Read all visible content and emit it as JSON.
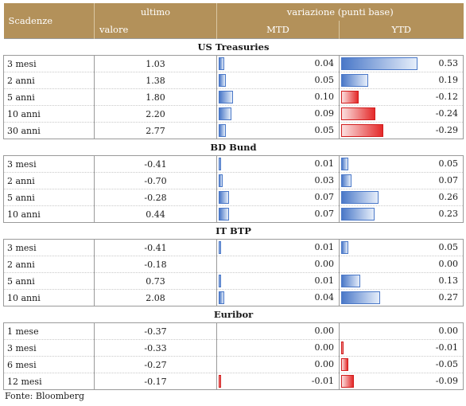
{
  "header": {
    "col_scadenze": "Scadenze",
    "col_ultimo_line1": "ultimo",
    "col_ultimo_line2": "valore",
    "col_variazione": "variazione (punti base)",
    "col_mtd": "MTD",
    "col_ytd": "YTD"
  },
  "colors": {
    "header_bg": "#b3915a",
    "bar_positive": "#4a78c8",
    "bar_negative": "#e42a2a"
  },
  "groups": [
    {
      "title": "US Treasuries",
      "rows": [
        {
          "label": "3 mesi",
          "value": "1.03",
          "mtd": "0.04",
          "ytd": "0.53"
        },
        {
          "label": "2 anni",
          "value": "1.38",
          "mtd": "0.05",
          "ytd": "0.19"
        },
        {
          "label": "5 anni",
          "value": "1.80",
          "mtd": "0.10",
          "ytd": "-0.12"
        },
        {
          "label": "10 anni",
          "value": "2.20",
          "mtd": "0.09",
          "ytd": "-0.24"
        },
        {
          "label": "30 anni",
          "value": "2.77",
          "mtd": "0.05",
          "ytd": "-0.29"
        }
      ]
    },
    {
      "title": "BD Bund",
      "rows": [
        {
          "label": "3 mesi",
          "value": "-0.41",
          "mtd": "0.01",
          "ytd": "0.05"
        },
        {
          "label": "2 anni",
          "value": "-0.70",
          "mtd": "0.03",
          "ytd": "0.07"
        },
        {
          "label": "5 anni",
          "value": "-0.28",
          "mtd": "0.07",
          "ytd": "0.26"
        },
        {
          "label": "10 anni",
          "value": "0.44",
          "mtd": "0.07",
          "ytd": "0.23"
        }
      ]
    },
    {
      "title": "IT BTP",
      "rows": [
        {
          "label": "3 mesi",
          "value": "-0.41",
          "mtd": "0.01",
          "ytd": "0.05"
        },
        {
          "label": "2 anni",
          "value": "-0.18",
          "mtd": "0.00",
          "ytd": "0.00"
        },
        {
          "label": "5 anni",
          "value": "0.73",
          "mtd": "0.01",
          "ytd": "0.13"
        },
        {
          "label": "10 anni",
          "value": "2.08",
          "mtd": "0.04",
          "ytd": "0.27"
        }
      ]
    },
    {
      "title": "Euribor",
      "rows": [
        {
          "label": "1 mese",
          "value": "-0.37",
          "mtd": "0.00",
          "ytd": "0.00"
        },
        {
          "label": "3 mesi",
          "value": "-0.33",
          "mtd": "0.00",
          "ytd": "-0.01"
        },
        {
          "label": "6 mesi",
          "value": "-0.27",
          "mtd": "0.00",
          "ytd": "-0.05"
        },
        {
          "label": "12 mesi",
          "value": "-0.17",
          "mtd": "-0.01",
          "ytd": "-0.09"
        }
      ]
    }
  ],
  "source": "Fonte: Bloomberg"
}
